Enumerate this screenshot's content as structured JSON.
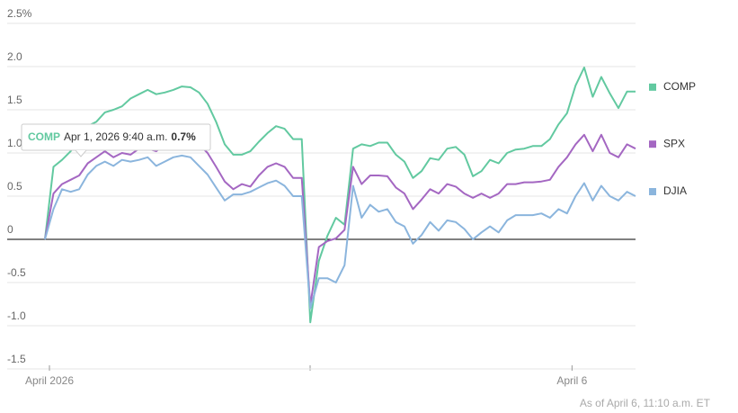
{
  "chart_data": {
    "type": "line",
    "categories": [
      "April 2026",
      null,
      null,
      null,
      null,
      null,
      null,
      null,
      null,
      null,
      null,
      null,
      null,
      null,
      null,
      null,
      null,
      null,
      null,
      null,
      null,
      null,
      null,
      null,
      null,
      null,
      null,
      null,
      null,
      null,
      null,
      null,
      null,
      null,
      null,
      null,
      null,
      null,
      null,
      null,
      null,
      null,
      null,
      null,
      null,
      null,
      null,
      null,
      null,
      null,
      null,
      null,
      null,
      null,
      null,
      null,
      null,
      null,
      null,
      null,
      null,
      null,
      "April 6",
      null,
      null,
      null,
      null,
      null,
      null,
      null
    ],
    "series": [
      {
        "name": "COMP",
        "color": "#62c9a0",
        "values": [
          0,
          0.84,
          0.92,
          1.02,
          1.16,
          1.31,
          1.36,
          1.47,
          1.5,
          1.54,
          1.63,
          1.68,
          1.73,
          1.68,
          1.7,
          1.73,
          1.77,
          1.76,
          1.7,
          1.57,
          1.36,
          1.1,
          0.98,
          0.98,
          1.02,
          1.13,
          1.23,
          1.31,
          1.28,
          1.16,
          1.16,
          -0.96,
          -0.25,
          0.04,
          0.25,
          0.17,
          1.05,
          1.1,
          1.08,
          1.12,
          1.12,
          0.98,
          0.9,
          0.71,
          0.79,
          0.94,
          0.92,
          1.05,
          1.07,
          0.98,
          0.73,
          0.79,
          0.92,
          0.88,
          1.0,
          1.04,
          1.05,
          1.08,
          1.08,
          1.16,
          1.33,
          1.46,
          1.78,
          1.99,
          1.65,
          1.88,
          1.69,
          1.52,
          1.71,
          1.71
        ]
      },
      {
        "name": "SPX",
        "color": "#a467c2",
        "values": [
          0,
          0.53,
          0.64,
          0.69,
          0.74,
          0.88,
          0.95,
          1.02,
          0.95,
          1.0,
          0.98,
          1.05,
          1.05,
          1.02,
          1.1,
          1.19,
          1.21,
          1.21,
          1.1,
          1.0,
          0.84,
          0.67,
          0.58,
          0.64,
          0.61,
          0.74,
          0.84,
          0.88,
          0.84,
          0.71,
          0.71,
          -0.77,
          -0.09,
          -0.02,
          0.01,
          0.11,
          0.84,
          0.64,
          0.74,
          0.74,
          0.73,
          0.6,
          0.53,
          0.35,
          0.46,
          0.58,
          0.53,
          0.64,
          0.61,
          0.53,
          0.48,
          0.53,
          0.48,
          0.53,
          0.64,
          0.64,
          0.66,
          0.66,
          0.67,
          0.69,
          0.84,
          0.95,
          1.1,
          1.21,
          1.02,
          1.21,
          1.0,
          0.95,
          1.1,
          1.05
        ]
      },
      {
        "name": "DJIA",
        "color": "#8bb5dd",
        "values": [
          0,
          0.35,
          0.58,
          0.55,
          0.58,
          0.75,
          0.85,
          0.9,
          0.85,
          0.92,
          0.9,
          0.92,
          0.95,
          0.85,
          0.9,
          0.95,
          0.97,
          0.95,
          0.85,
          0.75,
          0.6,
          0.45,
          0.52,
          0.52,
          0.55,
          0.6,
          0.65,
          0.68,
          0.62,
          0.5,
          0.5,
          -0.8,
          -0.45,
          -0.45,
          -0.5,
          -0.3,
          0.62,
          0.25,
          0.4,
          0.32,
          0.35,
          0.2,
          0.15,
          -0.05,
          0.05,
          0.2,
          0.1,
          0.22,
          0.2,
          0.12,
          0.0,
          0.08,
          0.15,
          0.08,
          0.22,
          0.28,
          0.28,
          0.28,
          0.3,
          0.25,
          0.35,
          0.3,
          0.5,
          0.65,
          0.45,
          0.62,
          0.5,
          0.45,
          0.55,
          0.5
        ]
      }
    ],
    "ylim": [
      -1.5,
      2.5
    ],
    "yticks": [
      {
        "value": 2.5,
        "label": "2.5%"
      },
      {
        "value": 2,
        "label": "2.0"
      },
      1.5,
      {
        "value": 1,
        "label": "1.0"
      },
      0.5,
      0,
      -0.5,
      {
        "value": -1,
        "label": "-1.0"
      },
      -1.5
    ],
    "grid": true,
    "legend": "right",
    "tooltip": {
      "series": "COMP",
      "time": "Apr 1, 2026 9:40 a.m.",
      "value": "0.7%"
    },
    "footnote": "As of April 6, 11:10 a.m. ET"
  }
}
